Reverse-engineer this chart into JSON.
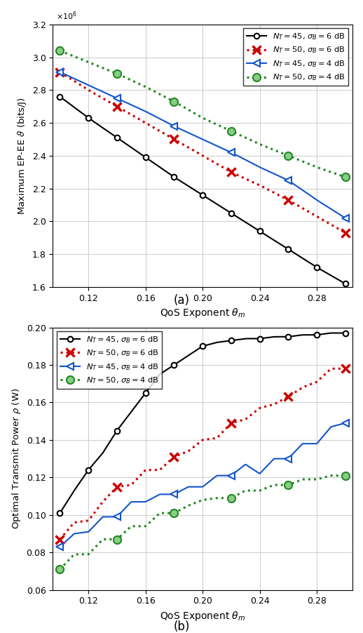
{
  "plot_a": {
    "subtitle": "(a)",
    "ylabel": "Maximum EP-EE $\\vartheta$ (bits/J)",
    "xlabel": "QoS Exponent $\\theta_m$",
    "ylim": [
      1600000.0,
      3200000.0
    ],
    "yticks": [
      1600000.0,
      1800000.0,
      2000000.0,
      2200000.0,
      2400000.0,
      2600000.0,
      2800000.0,
      3000000.0,
      3200000.0
    ],
    "xlim": [
      0.095,
      0.305
    ],
    "xticks": [
      0.12,
      0.16,
      0.2,
      0.24,
      0.28
    ],
    "black_x": [
      0.1,
      0.12,
      0.14,
      0.16,
      0.18,
      0.2,
      0.22,
      0.24,
      0.26,
      0.28,
      0.3
    ],
    "black_y": [
      2.76,
      2.63,
      2.51,
      2.39,
      2.27,
      2.16,
      2.05,
      1.94,
      1.83,
      1.72,
      1.62
    ],
    "red_x": [
      0.1,
      0.12,
      0.14,
      0.16,
      0.18,
      0.2,
      0.22,
      0.24,
      0.26,
      0.28,
      0.3
    ],
    "red_y": [
      2.91,
      2.8,
      2.7,
      2.6,
      2.5,
      2.4,
      2.3,
      2.22,
      2.13,
      2.03,
      1.93
    ],
    "blue_x": [
      0.1,
      0.12,
      0.14,
      0.16,
      0.18,
      0.2,
      0.22,
      0.24,
      0.26,
      0.28,
      0.3
    ],
    "blue_y": [
      2.91,
      2.83,
      2.75,
      2.67,
      2.58,
      2.5,
      2.42,
      2.33,
      2.25,
      2.13,
      2.02
    ],
    "green_x": [
      0.1,
      0.12,
      0.14,
      0.16,
      0.18,
      0.2,
      0.22,
      0.24,
      0.26,
      0.28,
      0.3
    ],
    "green_y": [
      3.04,
      2.97,
      2.9,
      2.82,
      2.73,
      2.63,
      2.55,
      2.47,
      2.4,
      2.33,
      2.27
    ]
  },
  "plot_b": {
    "subtitle": "(b)",
    "ylabel": "Optimal Transmit Power $\\rho$ (W)",
    "xlabel": "QoS Exponent $\\theta_m$",
    "ylim": [
      0.06,
      0.2
    ],
    "yticks": [
      0.06,
      0.08,
      0.1,
      0.12,
      0.14,
      0.16,
      0.18,
      0.2
    ],
    "xlim": [
      0.095,
      0.305
    ],
    "xticks": [
      0.12,
      0.16,
      0.2,
      0.24,
      0.28
    ],
    "black_x": [
      0.1,
      0.11,
      0.12,
      0.13,
      0.14,
      0.15,
      0.16,
      0.17,
      0.18,
      0.19,
      0.2,
      0.21,
      0.22,
      0.23,
      0.24,
      0.25,
      0.26,
      0.27,
      0.28,
      0.29,
      0.3
    ],
    "black_y": [
      0.101,
      0.113,
      0.124,
      0.133,
      0.145,
      0.155,
      0.165,
      0.175,
      0.18,
      0.185,
      0.19,
      0.192,
      0.193,
      0.194,
      0.194,
      0.195,
      0.195,
      0.196,
      0.196,
      0.197,
      0.197
    ],
    "red_x": [
      0.1,
      0.11,
      0.12,
      0.13,
      0.14,
      0.15,
      0.16,
      0.17,
      0.18,
      0.19,
      0.2,
      0.21,
      0.22,
      0.23,
      0.24,
      0.25,
      0.26,
      0.27,
      0.28,
      0.29,
      0.3
    ],
    "red_y": [
      0.087,
      0.096,
      0.097,
      0.107,
      0.115,
      0.116,
      0.124,
      0.124,
      0.131,
      0.134,
      0.14,
      0.141,
      0.149,
      0.151,
      0.157,
      0.159,
      0.163,
      0.168,
      0.171,
      0.178,
      0.178
    ],
    "blue_x": [
      0.1,
      0.11,
      0.12,
      0.13,
      0.14,
      0.15,
      0.16,
      0.17,
      0.18,
      0.19,
      0.2,
      0.21,
      0.22,
      0.23,
      0.24,
      0.25,
      0.26,
      0.27,
      0.28,
      0.29,
      0.3
    ],
    "blue_y": [
      0.083,
      0.09,
      0.091,
      0.099,
      0.099,
      0.107,
      0.107,
      0.111,
      0.111,
      0.115,
      0.115,
      0.121,
      0.121,
      0.127,
      0.122,
      0.13,
      0.13,
      0.138,
      0.138,
      0.147,
      0.149
    ],
    "green_x": [
      0.1,
      0.11,
      0.12,
      0.13,
      0.14,
      0.15,
      0.16,
      0.17,
      0.18,
      0.19,
      0.2,
      0.21,
      0.22,
      0.23,
      0.24,
      0.25,
      0.26,
      0.27,
      0.28,
      0.29,
      0.3
    ],
    "green_y": [
      0.071,
      0.079,
      0.079,
      0.087,
      0.087,
      0.094,
      0.094,
      0.101,
      0.101,
      0.105,
      0.108,
      0.109,
      0.109,
      0.113,
      0.113,
      0.116,
      0.116,
      0.119,
      0.119,
      0.121,
      0.121
    ]
  },
  "legend_labels": [
    "$N_T = 45$, $\\sigma_B = 6$ dB",
    "$N_T = 50$, $\\sigma_B = 6$ dB",
    "$N_T = 45$, $\\sigma_B = 4$ dB",
    "$N_T = 50$, $\\sigma_B = 4$ dB"
  ]
}
